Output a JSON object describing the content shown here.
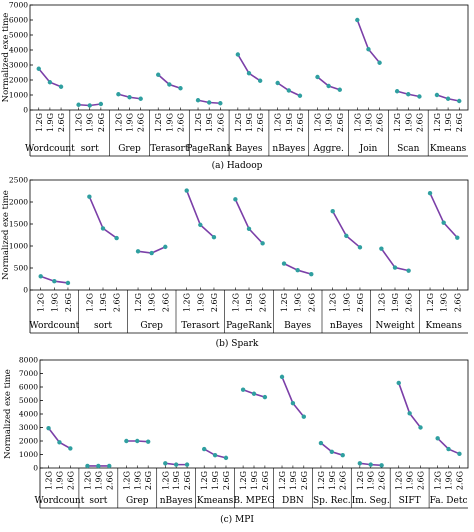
{
  "colors": {
    "line": "#7b3fa8",
    "marker": "#2f9fa0",
    "axis": "#000000"
  },
  "chart_data": [
    {
      "type": "line",
      "caption": "(a) Hadoop",
      "ylabel": "Normalized exe time",
      "ylim": [
        0,
        7000
      ],
      "yticks": [
        0,
        1000,
        2000,
        3000,
        4000,
        5000,
        6000,
        7000
      ],
      "x": [
        "1.2G",
        "1.9G",
        "2.6G"
      ],
      "series": [
        {
          "name": "Wordcount",
          "values": [
            2750,
            1850,
            1550
          ]
        },
        {
          "name": "sort",
          "values": [
            350,
            300,
            400
          ]
        },
        {
          "name": "Grep",
          "values": [
            1050,
            850,
            750
          ]
        },
        {
          "name": "Terasort",
          "values": [
            2350,
            1700,
            1450
          ]
        },
        {
          "name": "PageRank",
          "values": [
            650,
            500,
            450
          ]
        },
        {
          "name": "Bayes",
          "values": [
            3700,
            2450,
            1950
          ]
        },
        {
          "name": "nBayes",
          "values": [
            1800,
            1300,
            950
          ]
        },
        {
          "name": "Aggre.",
          "values": [
            2200,
            1600,
            1350
          ]
        },
        {
          "name": "Join",
          "values": [
            6000,
            4050,
            3150
          ]
        },
        {
          "name": "Scan",
          "values": [
            1250,
            1050,
            900
          ]
        },
        {
          "name": "Kmeans",
          "values": [
            1000,
            750,
            600
          ]
        }
      ]
    },
    {
      "type": "line",
      "caption": "(b) Spark",
      "ylabel": "Normalized exe time",
      "ylim": [
        0,
        2500
      ],
      "yticks": [
        0,
        500,
        1000,
        1500,
        2000,
        2500
      ],
      "x": [
        "1.2G",
        "1.9G",
        "2.6G"
      ],
      "series": [
        {
          "name": "Wordcount",
          "values": [
            310,
            200,
            160
          ]
        },
        {
          "name": "sort",
          "values": [
            2120,
            1400,
            1180
          ]
        },
        {
          "name": "Grep",
          "values": [
            880,
            840,
            980
          ]
        },
        {
          "name": "Terasort",
          "values": [
            2260,
            1480,
            1200
          ]
        },
        {
          "name": "PageRank",
          "values": [
            2060,
            1390,
            1060
          ]
        },
        {
          "name": "Bayes",
          "values": [
            600,
            450,
            360
          ]
        },
        {
          "name": "nBayes",
          "values": [
            1790,
            1230,
            970
          ]
        },
        {
          "name": "Nweight",
          "values": [
            940,
            510,
            440
          ]
        },
        {
          "name": "Kmeans",
          "values": [
            2200,
            1530,
            1190
          ]
        }
      ]
    },
    {
      "type": "line",
      "caption": "(c) MPI",
      "ylabel": "Normalized exe time",
      "ylim": [
        0,
        8000
      ],
      "yticks": [
        0,
        1000,
        2000,
        3000,
        4000,
        5000,
        6000,
        7000,
        8000
      ],
      "x": [
        "1.2G",
        "1.9G",
        "2.6G"
      ],
      "series": [
        {
          "name": "Wordcount",
          "values": [
            2950,
            1900,
            1450
          ]
        },
        {
          "name": "sort",
          "values": [
            150,
            150,
            150
          ]
        },
        {
          "name": "Grep",
          "values": [
            2000,
            2000,
            1950
          ]
        },
        {
          "name": "nBayes",
          "values": [
            350,
            250,
            250
          ]
        },
        {
          "name": "Kmeans",
          "values": [
            1400,
            950,
            750
          ]
        },
        {
          "name": "B. MPEG",
          "values": [
            5800,
            5500,
            5250
          ]
        },
        {
          "name": "DBN",
          "values": [
            6750,
            4800,
            3800
          ]
        },
        {
          "name": "Sp. Rec.",
          "values": [
            1850,
            1200,
            950
          ]
        },
        {
          "name": "Im. Seg.",
          "values": [
            350,
            250,
            200
          ]
        },
        {
          "name": "SIFT",
          "values": [
            6300,
            4050,
            3000
          ]
        },
        {
          "name": "Fa. Detc",
          "values": [
            2200,
            1400,
            1050
          ]
        }
      ]
    }
  ]
}
